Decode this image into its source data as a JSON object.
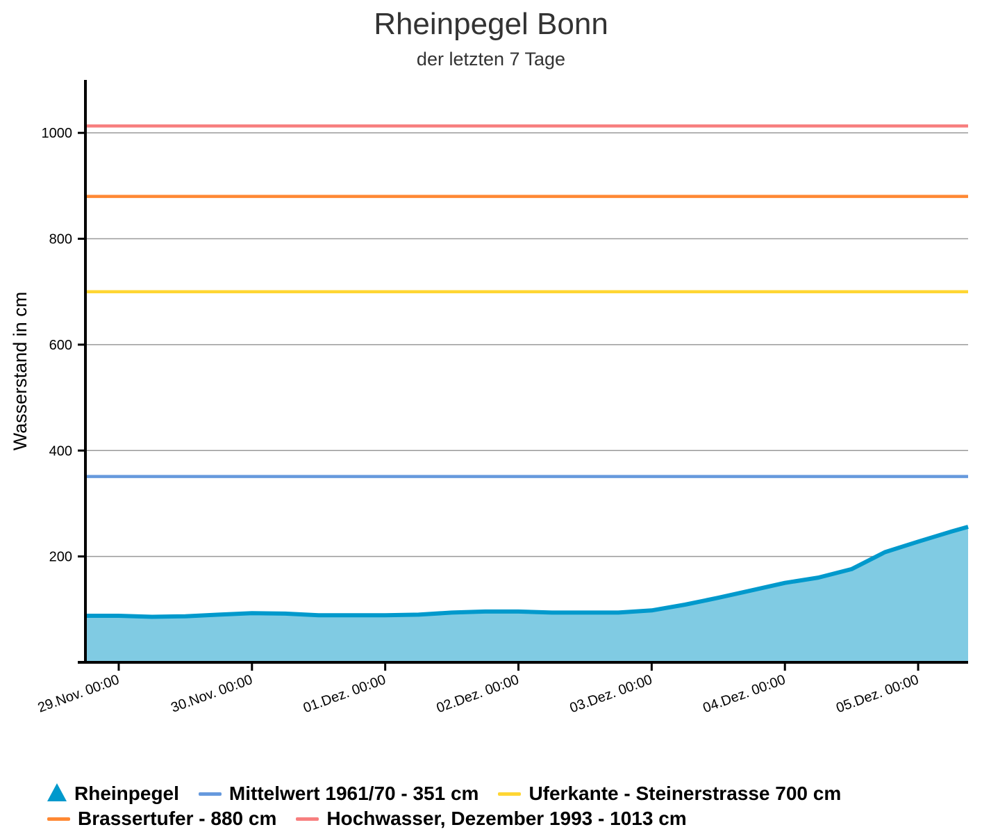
{
  "chart_data": {
    "type": "area",
    "title": "Rheinpegel Bonn",
    "subtitle": "der letzten 7 Tage",
    "xlabel": "",
    "ylabel": "Wasserstand in cm",
    "ylim": [
      0,
      1100
    ],
    "y_ticks": [
      200,
      400,
      600,
      800,
      1000
    ],
    "x_range": [
      "2023-11-28T18:00",
      "2023-12-05T09:00"
    ],
    "x_ticks": [
      {
        "date": "2023-11-29T00:00",
        "label": "29.Nov.  00:00"
      },
      {
        "date": "2023-11-30T00:00",
        "label": "30.Nov.  00:00"
      },
      {
        "date": "2023-12-01T00:00",
        "label": "01.Dez.  00:00"
      },
      {
        "date": "2023-12-02T00:00",
        "label": "02.Dez.  00:00"
      },
      {
        "date": "2023-12-03T00:00",
        "label": "03.Dez.  00:00"
      },
      {
        "date": "2023-12-04T00:00",
        "label": "04.Dez.  00:00"
      },
      {
        "date": "2023-12-05T00:00",
        "label": "05.Dez.  00:00"
      }
    ],
    "grid": true,
    "legend_position": "bottom",
    "series": [
      {
        "name": "Rheinpegel",
        "kind": "area",
        "color": "#0099cc",
        "fill_color": "#80cbe3",
        "x": [
          "2023-11-28T18:00",
          "2023-11-29T00:00",
          "2023-11-29T06:00",
          "2023-11-29T12:00",
          "2023-11-29T18:00",
          "2023-11-30T00:00",
          "2023-11-30T06:00",
          "2023-11-30T12:00",
          "2023-11-30T18:00",
          "2023-12-01T00:00",
          "2023-12-01T06:00",
          "2023-12-01T12:00",
          "2023-12-01T18:00",
          "2023-12-02T00:00",
          "2023-12-02T06:00",
          "2023-12-02T12:00",
          "2023-12-02T18:00",
          "2023-12-03T00:00",
          "2023-12-03T06:00",
          "2023-12-03T12:00",
          "2023-12-03T18:00",
          "2023-12-04T00:00",
          "2023-12-04T06:00",
          "2023-12-04T12:00",
          "2023-12-04T18:00",
          "2023-12-05T00:00",
          "2023-12-05T06:00",
          "2023-12-05T09:00"
        ],
        "y": [
          88,
          88,
          86,
          87,
          90,
          93,
          92,
          89,
          89,
          89,
          90,
          94,
          96,
          96,
          94,
          94,
          94,
          98,
          109,
          122,
          136,
          150,
          160,
          176,
          208,
          228,
          247,
          256
        ]
      },
      {
        "name": "Mittelwert 1961/70 - 351 cm",
        "kind": "line",
        "color": "#6699dd",
        "y_const": 351
      },
      {
        "name": "Uferkante - Steinerstrasse 700 cm",
        "kind": "line",
        "color": "#ffd633",
        "y_const": 700
      },
      {
        "name": "Brassertufer - 880 cm",
        "kind": "line",
        "color": "#ff8833",
        "y_const": 880
      },
      {
        "name": "Hochwasser, Dezember 1993 - 1013 cm",
        "kind": "line",
        "color": "#f77f7f",
        "y_const": 1013
      }
    ]
  },
  "legend": {
    "items": [
      {
        "label": "Rheinpegel",
        "color": "#0099cc",
        "symbol": "triangle"
      },
      {
        "label": "Mittelwert 1961/70 - 351 cm",
        "color": "#6699dd",
        "symbol": "line"
      },
      {
        "label": "Uferkante - Steinerstrasse 700 cm",
        "color": "#ffd633",
        "symbol": "line"
      },
      {
        "label": "Brassertufer - 880 cm",
        "color": "#ff8833",
        "symbol": "line"
      },
      {
        "label": "Hochwasser, Dezember 1993 - 1013 cm",
        "color": "#f77f7f",
        "symbol": "line"
      }
    ]
  }
}
